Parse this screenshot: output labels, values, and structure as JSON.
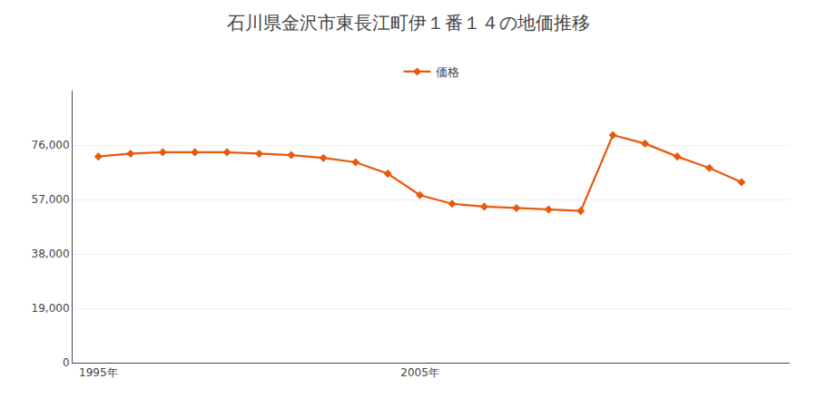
{
  "chart_data": {
    "type": "line",
    "title": "石川県金沢市東長江町伊１番１４の地価推移",
    "x": [
      1995,
      1996,
      1997,
      1998,
      1999,
      2000,
      2001,
      2002,
      2003,
      2004,
      2005,
      2006,
      2007,
      2008,
      2009,
      2010,
      2011,
      2012,
      2013,
      2014,
      2015
    ],
    "series": [
      {
        "name": "価格",
        "color": "#E8590C",
        "marker": "diamond",
        "values": [
          72000,
          73000,
          73500,
          73500,
          73500,
          73000,
          72500,
          71500,
          70000,
          66000,
          58500,
          55500,
          54500,
          54000,
          53500,
          53000,
          79500,
          76500,
          72000,
          68000,
          63000
        ]
      }
    ],
    "xlim": [
      1994.2,
      2016.5
    ],
    "xticks": [
      {
        "value": 1995,
        "label": "1995年"
      },
      {
        "value": 2005,
        "label": "2005年"
      }
    ],
    "ylim": [
      0,
      95000
    ],
    "yticks": [
      0,
      {
        "value": 19000,
        "label": "19,000"
      },
      {
        "value": 38000,
        "label": "38,000"
      },
      {
        "value": 57000,
        "label": "57,000"
      },
      {
        "value": 76000,
        "label": "76,000"
      }
    ],
    "grid": "y",
    "legend": "top"
  }
}
